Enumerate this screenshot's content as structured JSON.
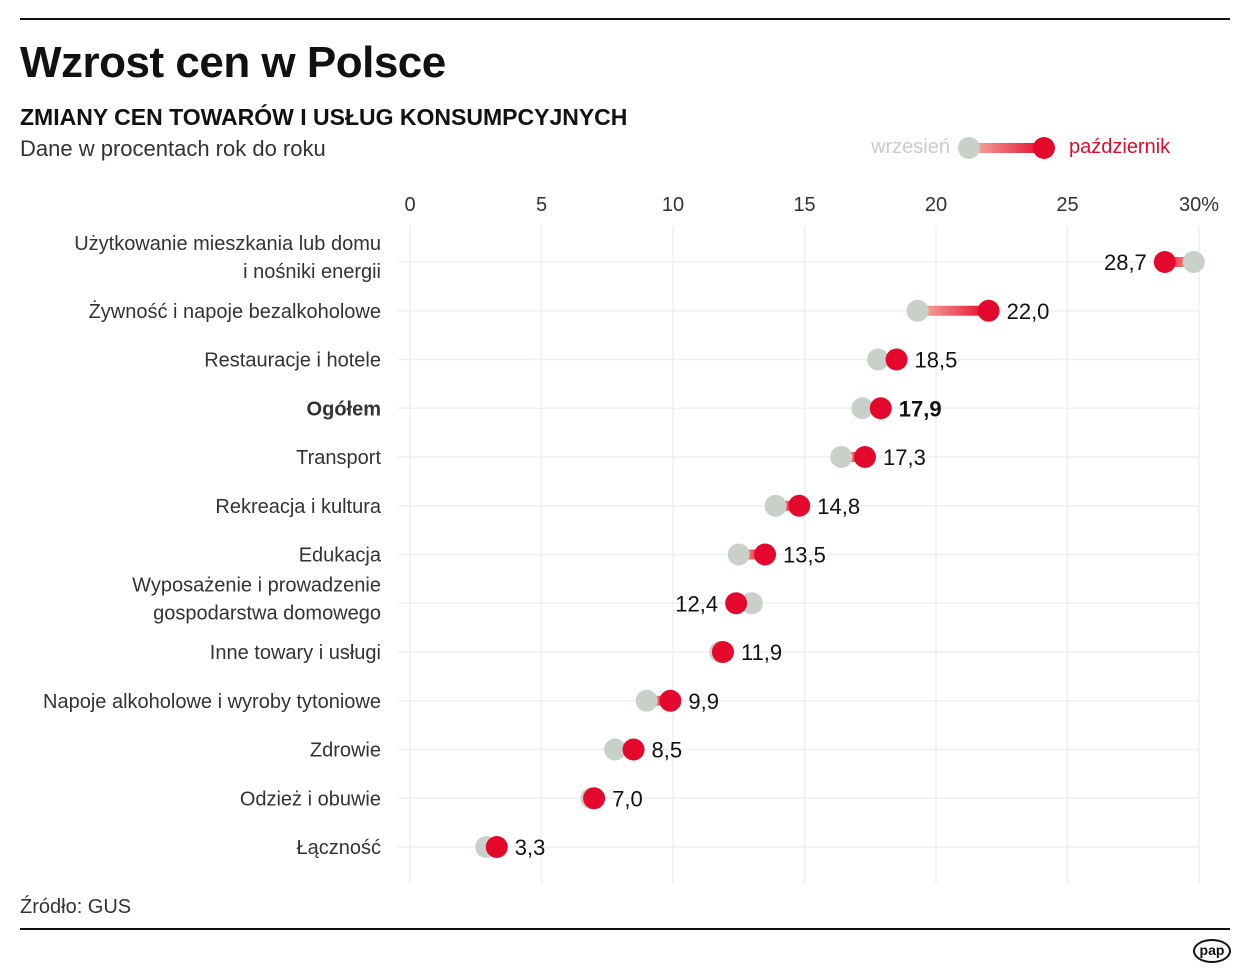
{
  "title": "Wzrost cen w Polsce",
  "subtitle": "ZMIANY CEN TOWARÓW I USŁUG KONSUMPCYJNYCH",
  "description": "Dane w procentach rok do roku",
  "source": "Źródło: GUS",
  "logo": "pap",
  "chart_data": {
    "type": "dumbbell",
    "xlim": [
      0,
      30
    ],
    "ticks": [
      "0",
      "5",
      "10",
      "15",
      "20",
      "25",
      "30%"
    ],
    "tick_values": [
      0,
      5,
      10,
      15,
      20,
      25,
      30
    ],
    "grid": true,
    "legend": {
      "position": "top-right",
      "start": "wrzesień",
      "end": "październik"
    },
    "colors": {
      "start": "#c8d0c9",
      "end": "#e4092c",
      "start_label": "#c8cdc9",
      "end_label": "#e4092c"
    },
    "categories": [
      [
        "Użytkowanie mieszkania lub domu",
        "i nośniki energii"
      ],
      [
        "Żywność i napoje bezalkoholowe"
      ],
      [
        "Restauracje i hotele"
      ],
      [
        "Ogółem"
      ],
      [
        "Transport"
      ],
      [
        "Rekreacja i kultura"
      ],
      [
        "Edukacja"
      ],
      [
        "Wyposażenie i prowadzenie",
        "gospodarstwa domowego"
      ],
      [
        "Inne towary i usługi"
      ],
      [
        "Napoje alkoholowe i wyroby tytoniowe"
      ],
      [
        "Zdrowie"
      ],
      [
        "Odzież i obuwie"
      ],
      [
        "Łączność"
      ]
    ],
    "bold_category": 3,
    "series": [
      {
        "name": "wrzesień",
        "values": [
          29.8,
          19.3,
          17.8,
          17.2,
          16.4,
          13.9,
          12.5,
          13.0,
          11.8,
          9.0,
          7.8,
          6.9,
          2.9
        ]
      },
      {
        "name": "październik",
        "values": [
          28.7,
          22.0,
          18.5,
          17.9,
          17.3,
          14.8,
          13.5,
          12.4,
          11.9,
          9.9,
          8.5,
          7.0,
          3.3
        ]
      }
    ],
    "value_labels": [
      "28,7",
      "22,0",
      "18,5",
      "17,9",
      "17,3",
      "14,8",
      "13,5",
      "12,4",
      "11,9",
      "9,9",
      "8,5",
      "7,0",
      "3,3"
    ]
  }
}
